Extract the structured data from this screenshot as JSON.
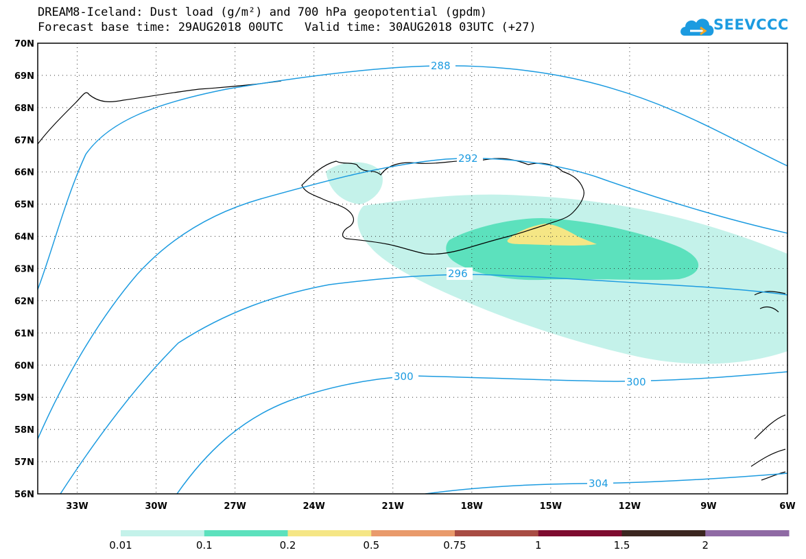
{
  "title": {
    "line1": "DREAM8-Iceland: Dust load (g/m²) and 700 hPa geopotential (gpdm)",
    "line2": "Forecast base time: 29AUG2018 00UTC   Valid time: 30AUG2018 03UTC (+27)"
  },
  "logo": {
    "text": "SEEVCCC",
    "color": "#1c9be0"
  },
  "axes": {
    "lat_labels": [
      "70N",
      "69N",
      "68N",
      "67N",
      "66N",
      "65N",
      "64N",
      "63N",
      "62N",
      "61N",
      "60N",
      "59N",
      "58N",
      "57N",
      "56N"
    ],
    "lon_labels": [
      "33W",
      "30W",
      "27W",
      "24W",
      "21W",
      "18W",
      "15W",
      "12W",
      "9W",
      "6W"
    ],
    "lat_range": [
      56,
      70
    ],
    "lon_range": [
      -34.5,
      -6
    ],
    "grid": "dotted"
  },
  "contours": {
    "color": "#1c9be0",
    "levels": [
      "288",
      "292",
      "296",
      "300",
      "300",
      "304"
    ]
  },
  "legend": {
    "labels": [
      "0.01",
      "0.1",
      "0.2",
      "0.5",
      "0.75",
      "1",
      "1.5",
      "2"
    ],
    "colors": [
      "#c4f2ea",
      "#5ce1bd",
      "#f5e685",
      "#e99a6b",
      "#a84c43",
      "#7e0c2f",
      "#3b2620",
      "#8f6aa4"
    ]
  }
}
